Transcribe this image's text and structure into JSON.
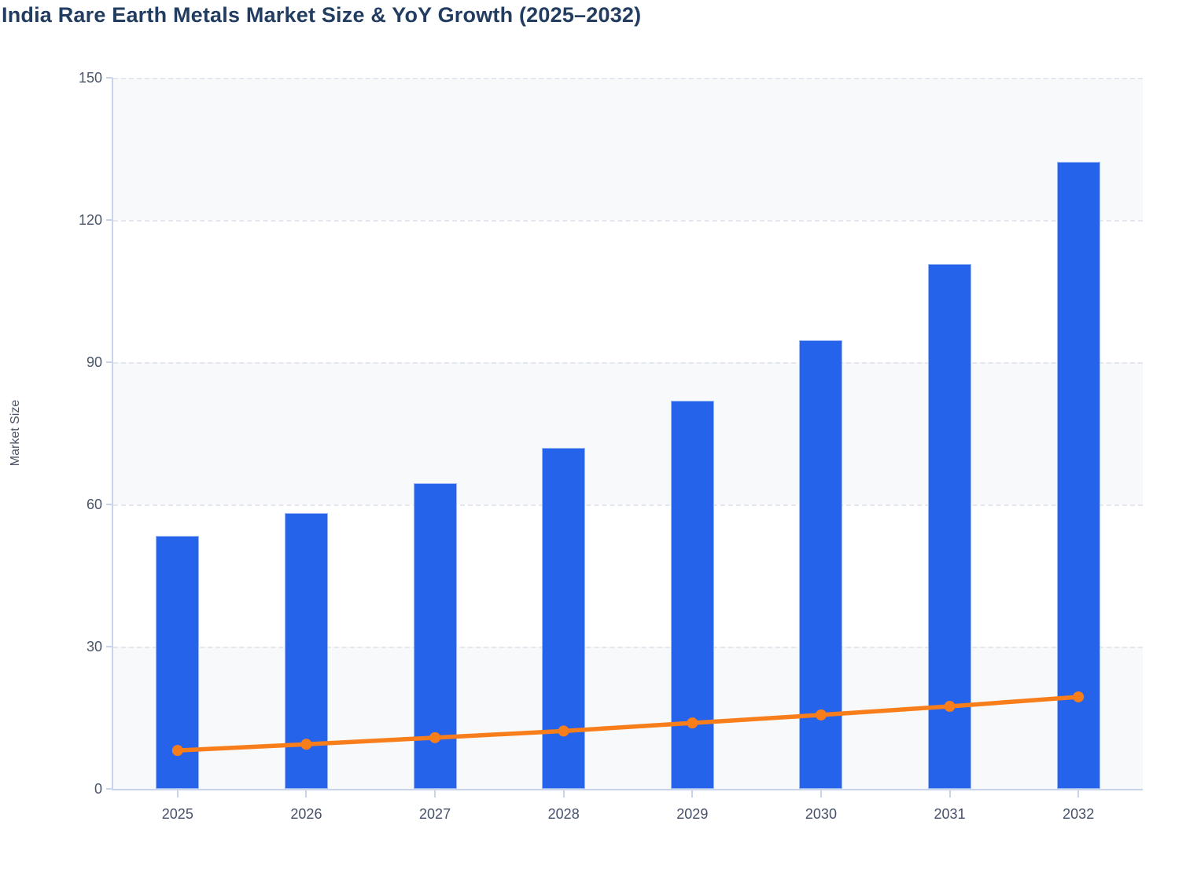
{
  "title": "India Rare Earth Metals Market Size & YoY Growth (2025–2032)",
  "colors": {
    "bar": "#2563eb",
    "line": "#f87d1b",
    "title_text": "#233d60",
    "axis_text": "#4a5568",
    "axis_line": "#c9d3ec",
    "gridline": "#e4e7ed",
    "band": "#f8f9fb"
  },
  "chart_data": {
    "type": "bar",
    "subtype": "bar-and-line combo",
    "title": "India Rare Earth Metals Market Size & YoY Growth (2025–2032)",
    "xlabel": "",
    "ylabel": "Market Size",
    "categories": [
      "2025",
      "2026",
      "2027",
      "2028",
      "2029",
      "2030",
      "2031",
      "2032"
    ],
    "series": [
      {
        "name": "Market Size",
        "type": "bar",
        "color": "#2563eb",
        "values": [
          53.3,
          58.1,
          64.4,
          71.9,
          81.9,
          94.6,
          110.8,
          132.3
        ]
      },
      {
        "name": "YoY Growth",
        "type": "line",
        "color": "#f87d1b",
        "values": [
          8.1,
          9.4,
          10.8,
          12.2,
          13.9,
          15.6,
          17.4,
          19.4
        ]
      }
    ],
    "ylim": [
      0,
      150
    ],
    "yticks": [
      0,
      30,
      60,
      90,
      120,
      150
    ],
    "grid": "horizontal dashed gridlines",
    "plot_background": "alternating horizontal bands",
    "legend": "none"
  }
}
